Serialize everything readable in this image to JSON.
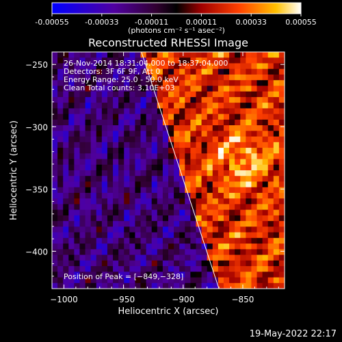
{
  "chart_data": {
    "type": "heatmap",
    "title": "Reconstructed RHESSI Image",
    "xlabel": "Heliocentric X (arcsec)",
    "ylabel": "Heliocentric Y (arcsec)",
    "xlim": [
      -1010,
      -815
    ],
    "ylim": [
      -430,
      -240
    ],
    "x_ticks": [
      -1000,
      -950,
      -900,
      -850
    ],
    "x_tick_labels": [
      "−1000",
      "−950",
      "−900",
      "−850"
    ],
    "y_ticks": [
      -250,
      -300,
      -350,
      -400
    ],
    "y_tick_labels": [
      "−250",
      "−300",
      "−350",
      "−400"
    ],
    "colorbar": {
      "range": [
        -0.00055,
        0.00055
      ],
      "ticks": [
        -0.00055,
        -0.00033,
        -0.00011,
        0.00011,
        0.00033,
        0.00055
      ],
      "tick_labels": [
        "-0.00055",
        "-0.00033",
        "-0.00011",
        "0.00011",
        "0.00033",
        "0.00055"
      ],
      "unit_label": "(photons cm⁻² s⁻¹ asec⁻²)"
    },
    "annotations": [
      "26-Nov-2014 18:31:04.000 to 18:37:04.000",
      "Detectors: 3F 6F 9F, Att 0",
      "Energy Range: 25.0 - 50.0 keV",
      "Clean    Total counts: 3.10E+03"
    ],
    "peak": {
      "label": "Position of Peak = [−849,−328]",
      "x": -849,
      "y": -328
    },
    "limb_line": [
      [
        -935,
        -240
      ],
      [
        -870,
        -430
      ]
    ],
    "colors": {
      "background": "#000000",
      "text": "#ffffff"
    }
  },
  "footer": {
    "timestamp": "19-May-2022 22:17"
  }
}
